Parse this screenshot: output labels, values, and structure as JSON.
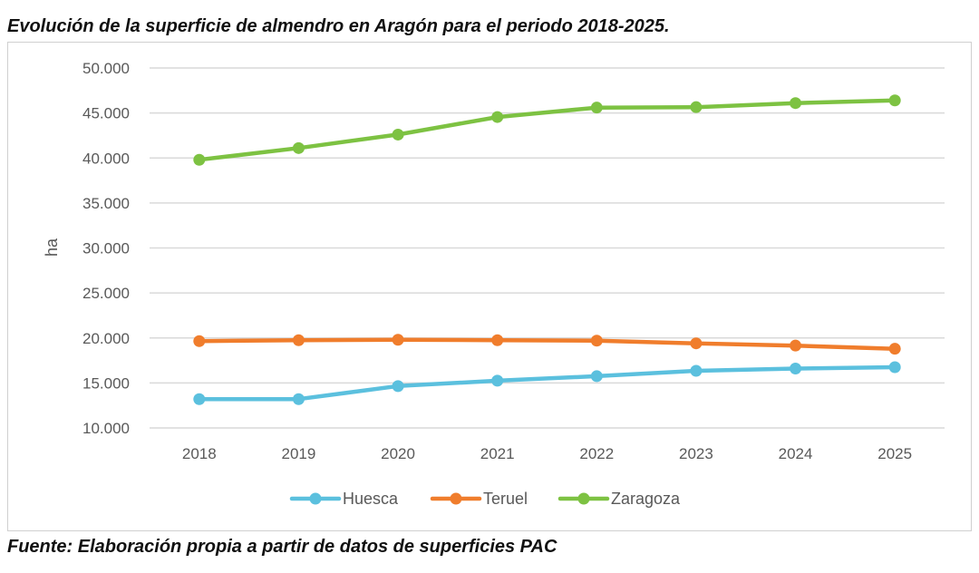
{
  "title": "Evolución de la superficie de almendro en Aragón para el periodo 2018-2025.",
  "source": "Fuente: Elaboración propia a partir de datos de superficies PAC",
  "chart_data": {
    "type": "line",
    "title": "",
    "xlabel": "",
    "ylabel": "ha",
    "categories": [
      "2018",
      "2019",
      "2020",
      "2021",
      "2022",
      "2023",
      "2024",
      "2025"
    ],
    "ylim": [
      10000,
      50000
    ],
    "ytick_values": [
      10000,
      15000,
      20000,
      25000,
      30000,
      35000,
      40000,
      45000,
      50000
    ],
    "ytick_labels": [
      "10.000",
      "15.000",
      "20.000",
      "25.000",
      "30.000",
      "35.000",
      "40.000",
      "45.000",
      "50.000"
    ],
    "grid": "horizontal",
    "legend_position": "bottom",
    "series": [
      {
        "name": "Huesca",
        "color": "#5BC0DE",
        "values": [
          13200,
          13200,
          14650,
          15250,
          15750,
          16350,
          16600,
          16750
        ]
      },
      {
        "name": "Teruel",
        "color": "#F07D2C",
        "values": [
          19650,
          19750,
          19800,
          19750,
          19700,
          19400,
          19150,
          18800
        ]
      },
      {
        "name": "Zaragoza",
        "color": "#7DC242",
        "values": [
          39800,
          41100,
          42600,
          44550,
          45600,
          45650,
          46100,
          46400
        ]
      }
    ]
  }
}
